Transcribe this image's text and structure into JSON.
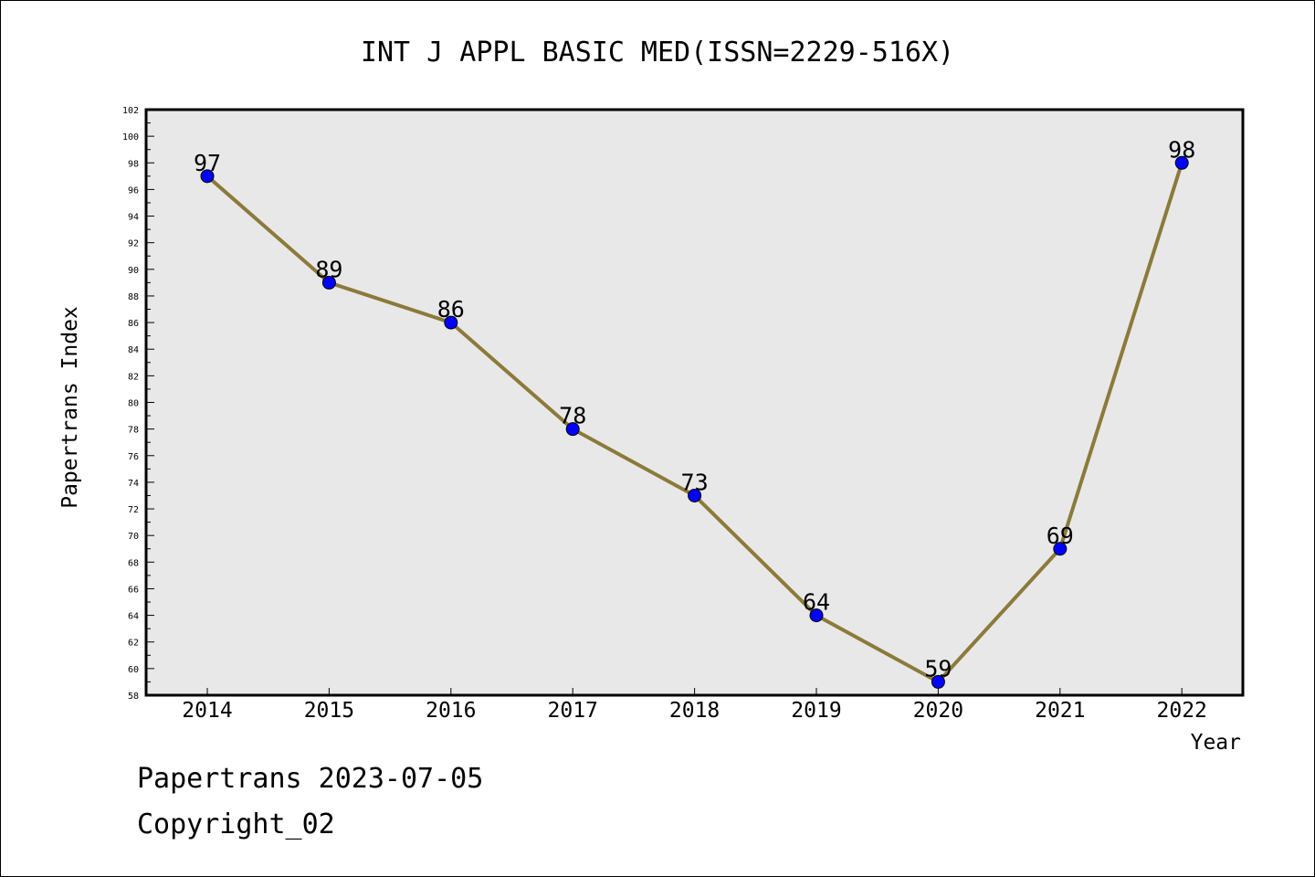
{
  "chart_data": {
    "type": "line",
    "title": "INT J APPL BASIC MED(ISSN=2229-516X)",
    "xlabel": "Year",
    "ylabel": "Papertrans Index",
    "x": [
      "2014",
      "2015",
      "2016",
      "2017",
      "2018",
      "2019",
      "2020",
      "2021",
      "2022"
    ],
    "series": [
      {
        "values": [
          97,
          89,
          86,
          78,
          73,
          64,
          59,
          69,
          98
        ]
      }
    ],
    "ylim": [
      58,
      102
    ],
    "ytick_step": 2,
    "grid": false,
    "legend": "none",
    "colors": {
      "line": "#8b7a3a",
      "marker": "#0000ff",
      "plot_bg": "#e8e8e8"
    }
  },
  "footer": {
    "line1": "Papertrans 2023-07-05",
    "line2": "Copyright_02"
  }
}
